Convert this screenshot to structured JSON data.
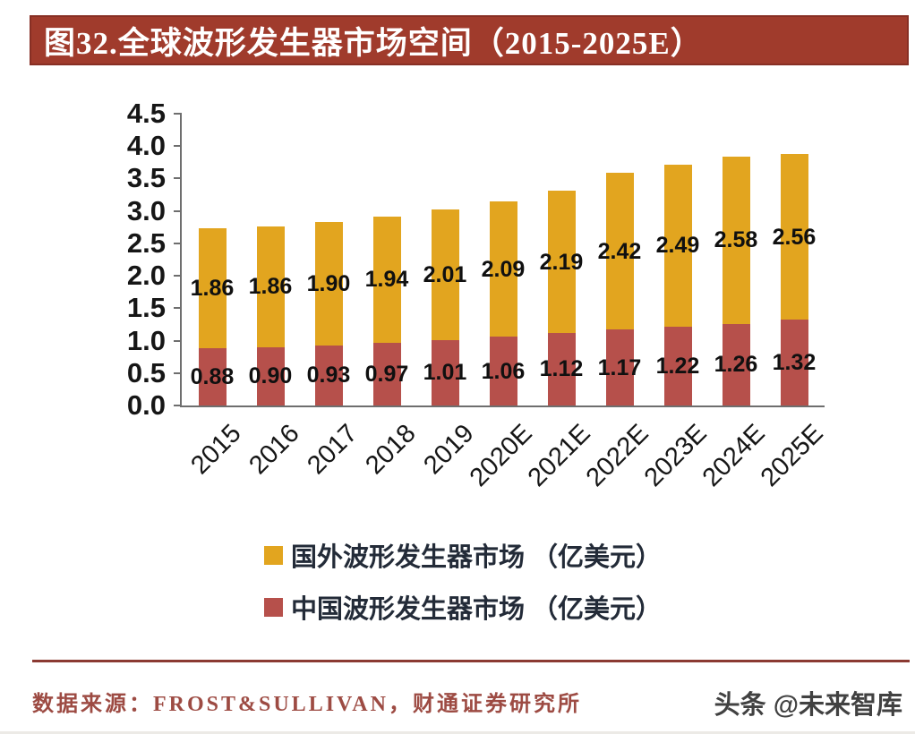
{
  "page": {
    "title": "图32.全球波形发生器市场空间（2015-2025E）"
  },
  "chart_data": {
    "type": "bar",
    "stacked": true,
    "title": "图32.全球波形发生器市场空间（2015-2025E）",
    "categories": [
      "2015",
      "2016",
      "2017",
      "2018",
      "2019",
      "2020E",
      "2021E",
      "2022E",
      "2023E",
      "2024E",
      "2025E"
    ],
    "series": [
      {
        "name": "国外波形发生器市场（亿美元）",
        "color": "#E2A51F",
        "stack_position": "top",
        "values": [
          1.86,
          1.86,
          1.9,
          1.94,
          2.01,
          2.09,
          2.19,
          2.42,
          2.49,
          2.58,
          2.56
        ]
      },
      {
        "name": "中国波形发生器市场（亿美元）",
        "color": "#B6504B",
        "stack_position": "bottom",
        "values": [
          0.88,
          0.9,
          0.93,
          0.97,
          1.01,
          1.06,
          1.12,
          1.17,
          1.22,
          1.26,
          1.32
        ]
      }
    ],
    "totals": [
      2.74,
      2.76,
      2.83,
      2.91,
      3.02,
      3.15,
      3.31,
      3.59,
      3.71,
      3.84,
      3.88
    ],
    "ylim": [
      0,
      4.5
    ],
    "ytick_step": 0.5,
    "ytick_labels": [
      "0.0",
      "0.5",
      "1.0",
      "1.5",
      "2.0",
      "2.5",
      "3.0",
      "3.5",
      "4.0",
      "4.5"
    ],
    "grid": false,
    "value_labels_visible": true,
    "value_label_decimals": 2,
    "xlabel": "",
    "ylabel": "",
    "legend_position": "bottom-left",
    "x_tick_rotation_deg": -45
  },
  "legend": {
    "items": [
      {
        "label": "国外波形发生器市场 （亿美元）",
        "color": "#E2A51F"
      },
      {
        "label": "中国波形发生器市场 （亿美元）",
        "color": "#B6504B"
      }
    ]
  },
  "footer": {
    "source": "数据来源：FROST&SULLIVAN，财通证券研究所",
    "watermark": "头条 @未来智库"
  },
  "colors": {
    "title_bg": "#A03B2C",
    "title_border": "#872F24",
    "title_text": "#FFFFFF",
    "axis": "#6E6E6E",
    "tick_text": "#161616",
    "value_label_text": "#101010",
    "legend_text": "#232B38",
    "footer_text": "#9D4B43",
    "footer_divider": "#8B3A32",
    "watermark_text": "#414141",
    "background": "#FFFFFF"
  }
}
